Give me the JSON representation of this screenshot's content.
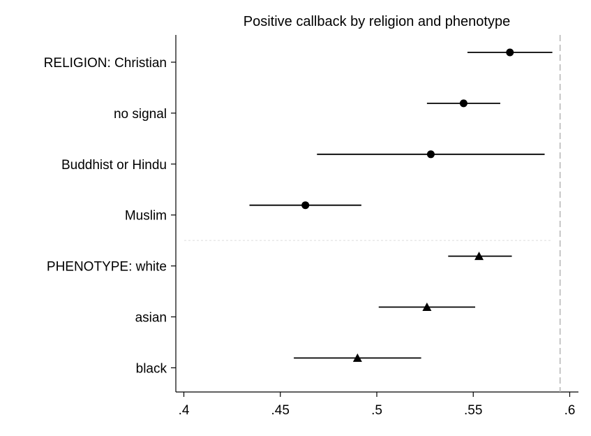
{
  "chart_data": {
    "type": "scatter",
    "title": "Positive callback by religion and phenotype",
    "xlabel": "",
    "ylabel": "",
    "xlim": [
      0.395,
      0.605
    ],
    "x_ticks": [
      {
        "value": 0.4,
        "label": ".4"
      },
      {
        "value": 0.45,
        "label": ".45"
      },
      {
        "value": 0.5,
        "label": ".5"
      },
      {
        "value": 0.55,
        "label": ".55"
      },
      {
        "value": 0.6,
        "label": ".6"
      }
    ],
    "reference_line": 0.595,
    "group_separator": true,
    "grid": false,
    "legend": "none",
    "colors": {
      "marker": "#000000",
      "reference": "#b0b0b0",
      "separator": "#dcdcdc"
    },
    "series": [
      {
        "marker": "circle",
        "points": [
          {
            "label": "RELIGION: Christian",
            "estimate": 0.569,
            "ci": [
              0.547,
              0.591
            ]
          },
          {
            "label": "no signal",
            "estimate": 0.545,
            "ci": [
              0.526,
              0.564
            ]
          },
          {
            "label": "Buddhist or Hindu",
            "estimate": 0.528,
            "ci": [
              0.469,
              0.587
            ]
          },
          {
            "label": "Muslim",
            "estimate": 0.463,
            "ci": [
              0.434,
              0.492
            ]
          }
        ]
      },
      {
        "marker": "triangle",
        "points": [
          {
            "label": "PHENOTYPE: white",
            "estimate": 0.553,
            "ci": [
              0.537,
              0.57
            ]
          },
          {
            "label": "asian",
            "estimate": 0.526,
            "ci": [
              0.501,
              0.551
            ]
          },
          {
            "label": "black",
            "estimate": 0.49,
            "ci": [
              0.457,
              0.523
            ]
          }
        ]
      }
    ]
  }
}
